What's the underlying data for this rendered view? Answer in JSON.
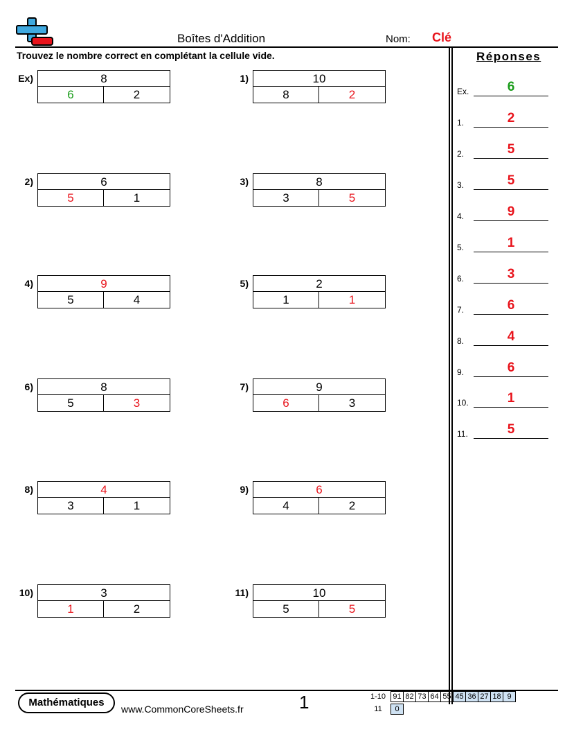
{
  "header": {
    "title": "Boîtes d'Addition",
    "name_label": "Nom:",
    "name_value": "Clé",
    "instructions": "Trouvez le nombre correct en complétant la cellule vide."
  },
  "colors": {
    "answer_red": "#e8131b",
    "example_green": "#1a9c1a",
    "logo_blue": "#3fa9e0",
    "logo_red": "#e8131b",
    "score_blue": "#cfe2f3"
  },
  "problems": [
    {
      "label": "Ex)",
      "top": "8",
      "left": "6",
      "right": "2",
      "blank": "left"
    },
    {
      "label": "1)",
      "top": "10",
      "left": "8",
      "right": "2",
      "blank": "right"
    },
    {
      "label": "2)",
      "top": "6",
      "left": "5",
      "right": "1",
      "blank": "left"
    },
    {
      "label": "3)",
      "top": "8",
      "left": "3",
      "right": "5",
      "blank": "right"
    },
    {
      "label": "4)",
      "top": "9",
      "left": "5",
      "right": "4",
      "blank": "top"
    },
    {
      "label": "5)",
      "top": "2",
      "left": "1",
      "right": "1",
      "blank": "right"
    },
    {
      "label": "6)",
      "top": "8",
      "left": "5",
      "right": "3",
      "blank": "right"
    },
    {
      "label": "7)",
      "top": "9",
      "left": "6",
      "right": "3",
      "blank": "left"
    },
    {
      "label": "8)",
      "top": "4",
      "left": "3",
      "right": "1",
      "blank": "top"
    },
    {
      "label": "9)",
      "top": "6",
      "left": "4",
      "right": "2",
      "blank": "top"
    },
    {
      "label": "10)",
      "top": "3",
      "left": "1",
      "right": "2",
      "blank": "left"
    },
    {
      "label": "11)",
      "top": "10",
      "left": "5",
      "right": "5",
      "blank": "right"
    }
  ],
  "answers_title": "Réponses",
  "answers": [
    {
      "label": "Ex.",
      "value": "6"
    },
    {
      "label": "1.",
      "value": "2"
    },
    {
      "label": "2.",
      "value": "5"
    },
    {
      "label": "3.",
      "value": "5"
    },
    {
      "label": "4.",
      "value": "9"
    },
    {
      "label": "5.",
      "value": "1"
    },
    {
      "label": "6.",
      "value": "3"
    },
    {
      "label": "7.",
      "value": "6"
    },
    {
      "label": "8.",
      "value": "4"
    },
    {
      "label": "9.",
      "value": "6"
    },
    {
      "label": "10.",
      "value": "1"
    },
    {
      "label": "11.",
      "value": "5"
    }
  ],
  "footer": {
    "brand": "Mathématiques",
    "site": "www.CommonCoreSheets.fr",
    "page_number": "1",
    "score_rows": [
      {
        "label": "1-10",
        "cells": [
          "91",
          "82",
          "73",
          "64",
          "55",
          "45",
          "36",
          "27",
          "18",
          "9"
        ]
      },
      {
        "label": "11",
        "cells": [
          "0"
        ]
      }
    ]
  }
}
